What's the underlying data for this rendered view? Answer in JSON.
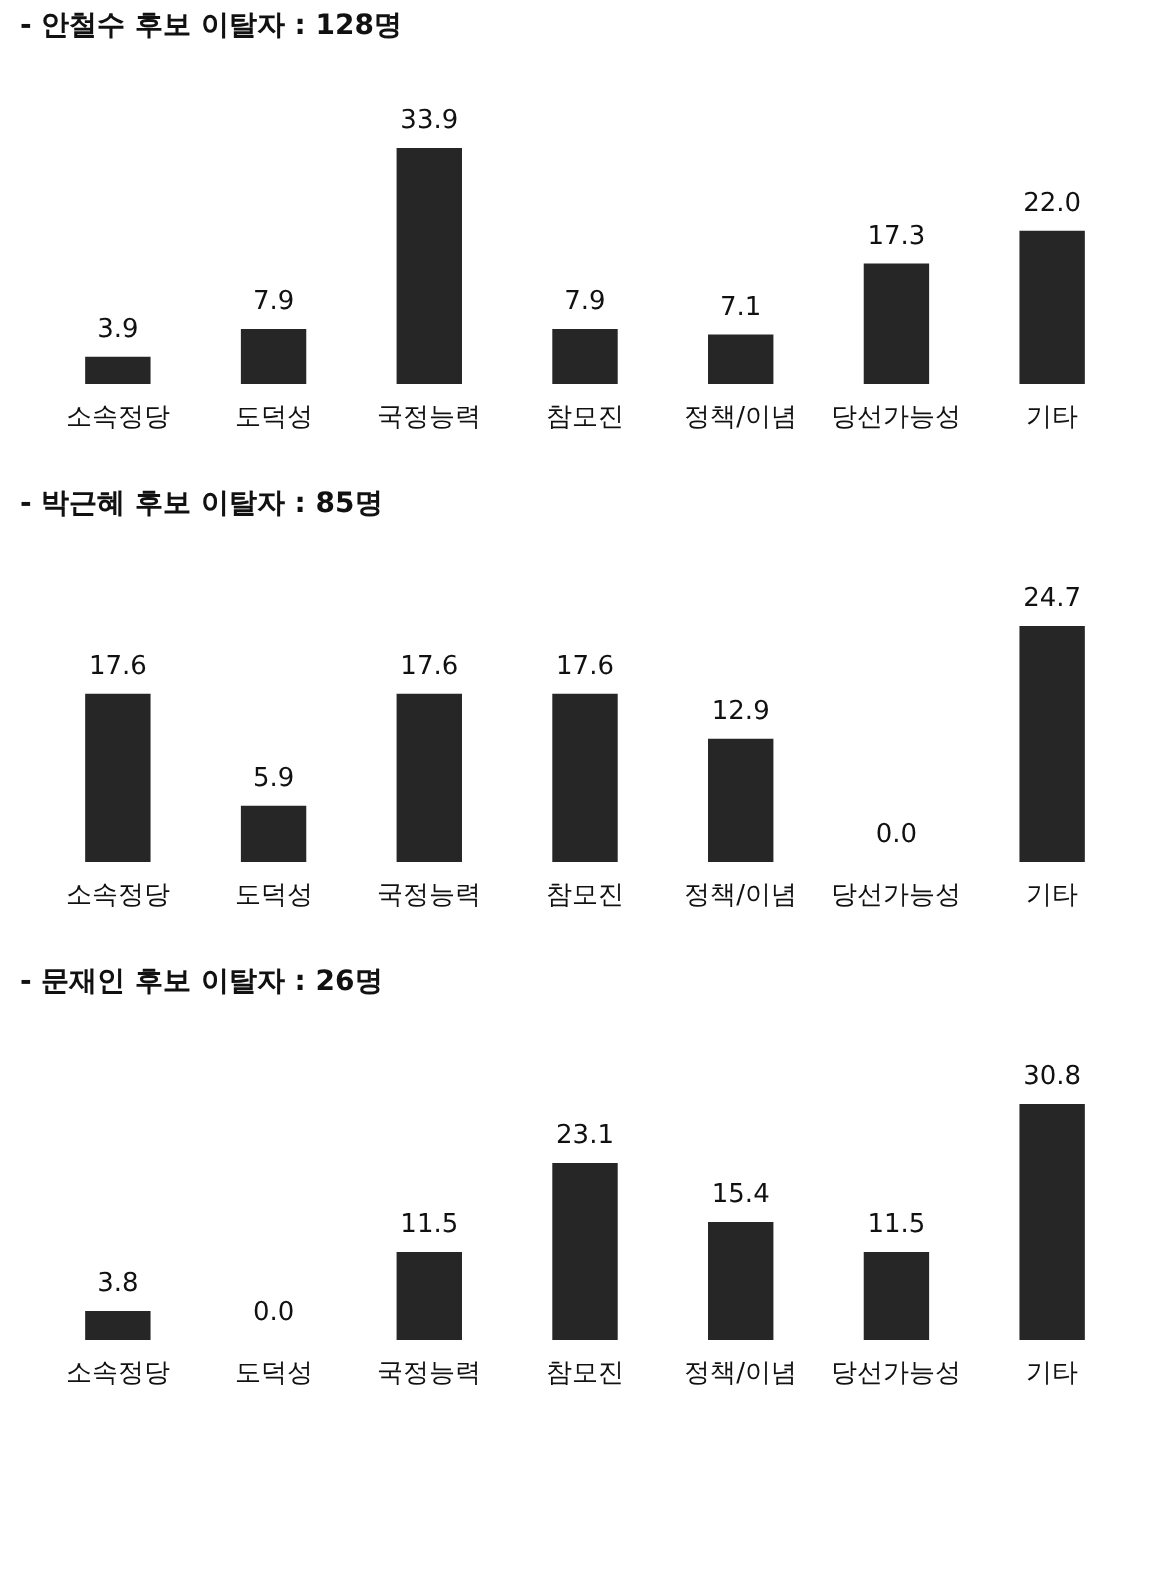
{
  "chart_data": [
    {
      "type": "bar",
      "title": "- 안철수 후보 이탈자 : 128명",
      "categories": [
        "소속정당",
        "도덕성",
        "국정능력",
        "참모진",
        "정책/이념",
        "당선가능성",
        "기타"
      ],
      "values": [
        3.9,
        7.9,
        33.9,
        7.9,
        7.1,
        17.3,
        22.0
      ],
      "color": "#262626",
      "value_labels": [
        "3.9",
        "7.9",
        "33.9",
        "7.9",
        "7.1",
        "17.3",
        "22.0"
      ]
    },
    {
      "type": "bar",
      "title": "- 박근혜 후보 이탈자 : 85명",
      "categories": [
        "소속정당",
        "도덕성",
        "국정능력",
        "참모진",
        "정책/이념",
        "당선가능성",
        "기타"
      ],
      "values": [
        17.6,
        5.9,
        17.6,
        17.6,
        12.9,
        0.0,
        24.7
      ],
      "color": "#262626",
      "value_labels": [
        "17.6",
        "5.9",
        "17.6",
        "17.6",
        "12.9",
        "0.0",
        "24.7"
      ]
    },
    {
      "type": "bar",
      "title": "- 문재인 후보 이탈자 : 26명",
      "categories": [
        "소속정당",
        "도덕성",
        "국정능력",
        "참모진",
        "정책/이념",
        "당선가능성",
        "기타"
      ],
      "values": [
        3.8,
        0.0,
        11.5,
        23.1,
        15.4,
        11.5,
        30.8
      ],
      "color": "#262626",
      "value_labels": [
        "3.8",
        "0.0",
        "11.5",
        "23.1",
        "15.4",
        "11.5",
        "30.8"
      ]
    }
  ]
}
